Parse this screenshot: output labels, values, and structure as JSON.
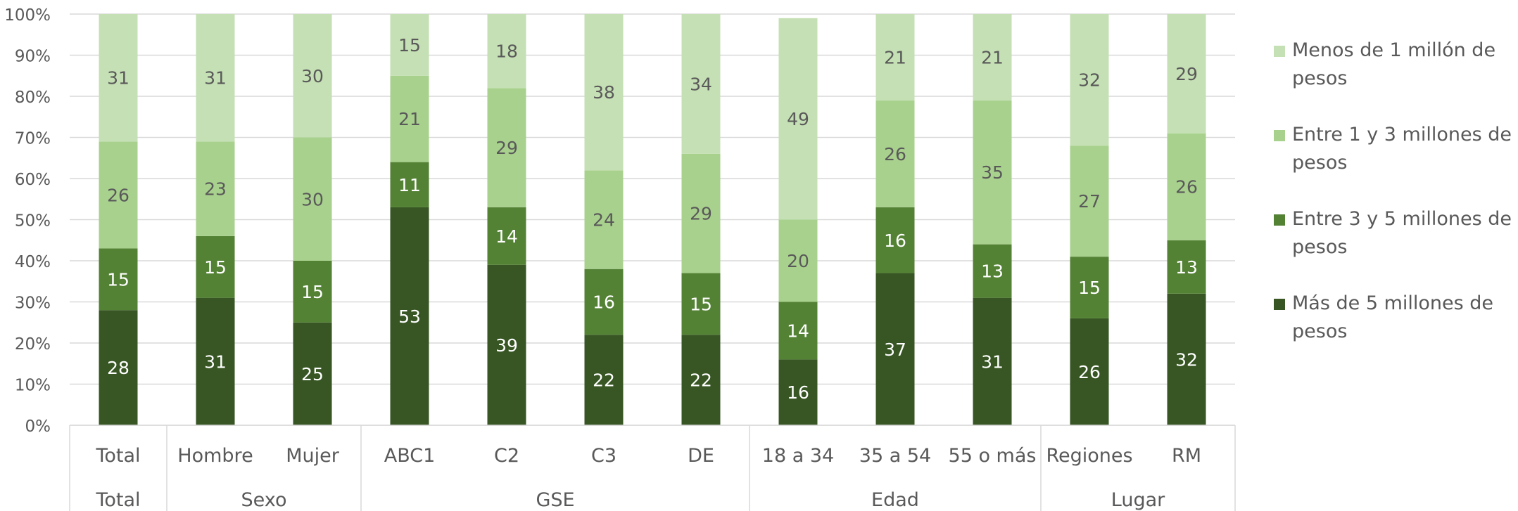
{
  "chart_data": {
    "type": "bar",
    "stacked": true,
    "percent_scale": true,
    "ylim": [
      0,
      100
    ],
    "y_ticks": [
      "0%",
      "10%",
      "20%",
      "30%",
      "40%",
      "50%",
      "60%",
      "70%",
      "80%",
      "90%",
      "100%"
    ],
    "grid": true,
    "legend_position": "right",
    "categories": [
      "Total",
      "Hombre",
      "Mujer",
      "ABC1",
      "C2",
      "C3",
      "DE",
      "18 a 34",
      "35 a 54",
      "55 o más",
      "Regiones",
      "RM"
    ],
    "groups": [
      {
        "label": "Total",
        "count": 1
      },
      {
        "label": "Sexo",
        "count": 2
      },
      {
        "label": "GSE",
        "count": 4
      },
      {
        "label": "Edad",
        "count": 3
      },
      {
        "label": "Lugar",
        "count": 2
      }
    ],
    "series": [
      {
        "name": "Más de 5 millones de pesos",
        "color": "#375623",
        "label_color": "#ffffff",
        "values": [
          28,
          31,
          25,
          53,
          39,
          22,
          22,
          16,
          37,
          31,
          26,
          32
        ]
      },
      {
        "name": "Entre 3 y 5 millones de pesos",
        "color": "#548235",
        "label_color": "#ffffff",
        "values": [
          15,
          15,
          15,
          11,
          14,
          16,
          15,
          14,
          16,
          13,
          15,
          13
        ]
      },
      {
        "name": "Entre 1 y 3 millones de pesos",
        "color": "#a9d18e",
        "label_color": "#595959",
        "values": [
          26,
          23,
          30,
          21,
          29,
          24,
          29,
          20,
          26,
          35,
          27,
          26
        ]
      },
      {
        "name": "Menos de 1 millón de pesos",
        "color": "#c5e0b4",
        "label_color": "#595959",
        "values": [
          31,
          31,
          30,
          15,
          18,
          38,
          34,
          49,
          21,
          21,
          32,
          29
        ]
      }
    ],
    "legend_order": [
      3,
      2,
      1,
      0
    ]
  }
}
